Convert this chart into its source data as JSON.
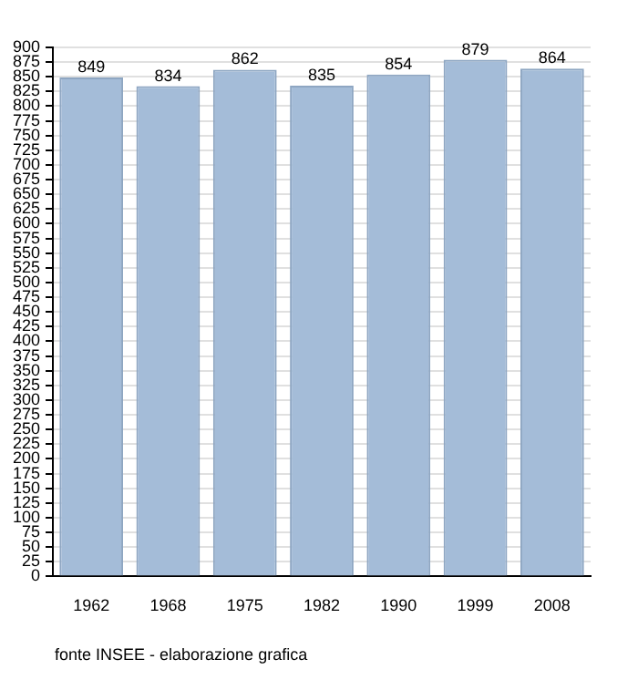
{
  "chart_data": {
    "type": "bar",
    "categories": [
      "1962",
      "1968",
      "1975",
      "1982",
      "1990",
      "1999",
      "2008"
    ],
    "values": [
      849,
      834,
      862,
      835,
      854,
      879,
      864
    ],
    "color": "#a4bcd8",
    "ylim": [
      0,
      900
    ],
    "yticks": [
      0,
      25,
      50,
      75,
      100,
      125,
      150,
      175,
      200,
      225,
      250,
      275,
      300,
      325,
      350,
      375,
      400,
      425,
      450,
      475,
      500,
      525,
      550,
      575,
      600,
      625,
      650,
      675,
      700,
      725,
      750,
      775,
      800,
      825,
      850,
      875,
      900
    ],
    "grid": "y",
    "data_labels": true,
    "annotations": [
      "fonte INSEE - elaborazione grafica"
    ]
  }
}
